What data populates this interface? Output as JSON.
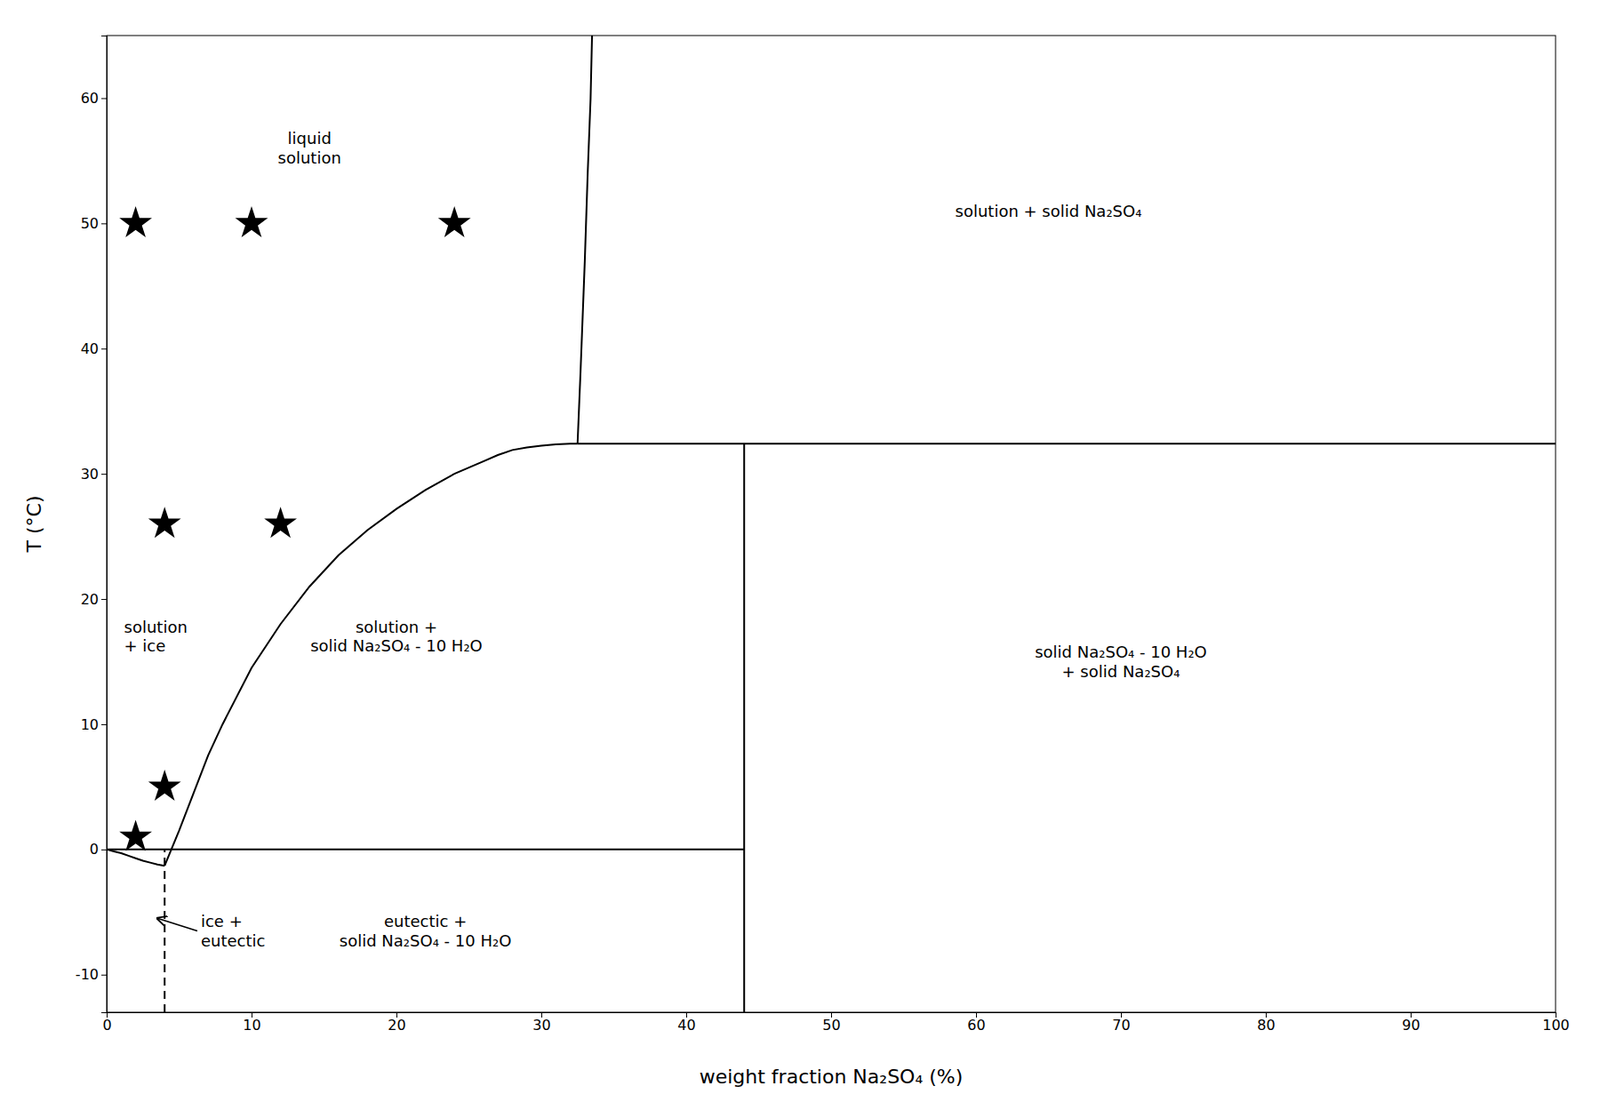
{
  "chart_data": {
    "type": "line",
    "xlabel": "weight fraction Na₂SO₄ (%)",
    "ylabel": "T (°C)",
    "xlim": [
      0,
      100
    ],
    "ylim": [
      -13,
      65
    ],
    "xticks": [
      0,
      10,
      20,
      30,
      40,
      50,
      60,
      70,
      80,
      90,
      100
    ],
    "yticks": [
      -10,
      0,
      10,
      20,
      30,
      40,
      50,
      60
    ],
    "grid": false,
    "series": [
      {
        "type": "line",
        "color": "black",
        "line_style": "solid",
        "x": [
          0,
          0.5,
          1.0,
          1.5,
          2.0,
          2.5,
          3.0,
          3.5,
          4.0
        ],
        "values": [
          0,
          -0.15,
          -0.3,
          -0.5,
          -0.7,
          -0.9,
          -1.05,
          -1.2,
          -1.3
        ]
      },
      {
        "type": "line",
        "color": "black",
        "line_style": "solid",
        "x": [
          4.0,
          5,
          6,
          7,
          8,
          10,
          12,
          14,
          16,
          18,
          20,
          22,
          24,
          26,
          27,
          28,
          29,
          30,
          31,
          32,
          32.5
        ],
        "values": [
          -1.3,
          1.5,
          4.5,
          7.5,
          10.0,
          14.5,
          18.0,
          21.0,
          23.5,
          25.5,
          27.2,
          28.7,
          30.0,
          31.0,
          31.5,
          31.9,
          32.1,
          32.25,
          32.35,
          32.4,
          32.4
        ]
      },
      {
        "type": "line",
        "color": "black",
        "line_style": "solid",
        "x": [
          32.5,
          32.7,
          33.0,
          33.2,
          33.4,
          33.5
        ],
        "values": [
          32.4,
          38,
          47,
          54,
          60,
          65
        ]
      },
      {
        "type": "line",
        "color": "black",
        "line_style": "solid",
        "x": [
          0,
          44
        ],
        "values": [
          0,
          0
        ]
      },
      {
        "type": "line",
        "color": "black",
        "line_style": "solid",
        "x": [
          32.5,
          100
        ],
        "values": [
          32.4,
          32.4
        ]
      },
      {
        "type": "line",
        "color": "black",
        "line_style": "solid",
        "x": [
          44,
          44
        ],
        "values": [
          -13,
          32.4
        ]
      },
      {
        "type": "line",
        "color": "black",
        "line_style": "dashed",
        "x": [
          4.0,
          4.0
        ],
        "values": [
          -13,
          0
        ]
      },
      {
        "type": "scatter",
        "color": "black",
        "marker": "star",
        "x": [
          2,
          10,
          24,
          4,
          12,
          4,
          2
        ],
        "values": [
          50,
          50,
          50,
          26,
          26,
          5,
          1
        ]
      }
    ],
    "annotations": [
      {
        "text": "liquid\nsolution",
        "x": 14,
        "y": 56
      },
      {
        "text": "solution + solid Na₂SO₄",
        "x": 65,
        "y": 51
      },
      {
        "text": "solution\n+ ice",
        "x": 1.2,
        "y": 17,
        "align": "left"
      },
      {
        "text": "solution +\nsolid Na₂SO₄ - 10 H₂O",
        "x": 20,
        "y": 17
      },
      {
        "text": "ice +\neutectic",
        "x": 6.5,
        "y": -6.5,
        "align": "left",
        "arrow": {
          "x": 3.5,
          "y": -5.5
        }
      },
      {
        "text": "eutectic +\nsolid Na₂SO₄ - 10 H₂O",
        "x": 22,
        "y": -6.5
      },
      {
        "text": "solid Na₂SO₄ - 10 H₂O\n+ solid Na₂SO₄",
        "x": 70,
        "y": 15
      }
    ]
  }
}
